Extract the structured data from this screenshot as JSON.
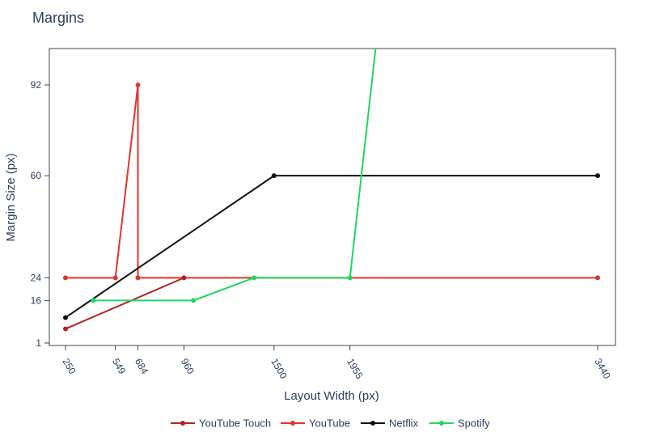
{
  "chart_data": {
    "type": "line",
    "title": "Margins",
    "xlabel": "Layout Width (px)",
    "ylabel": "Margin Size (px)",
    "x_ticks": [
      250,
      549,
      684,
      960,
      1500,
      1955,
      3440
    ],
    "y_ticks": [
      1,
      16,
      24,
      60,
      92
    ],
    "xlim": [
      250,
      3440
    ],
    "ylim": [
      1,
      92
    ],
    "legend_position": "bottom",
    "series": [
      {
        "name": "YouTube Touch",
        "color": "#b22222",
        "x": [
          250,
          960
        ],
        "y": [
          6,
          24
        ]
      },
      {
        "name": "YouTube",
        "color": "#e0352b",
        "x": [
          250,
          549,
          684,
          684,
          3440
        ],
        "y": [
          24,
          24,
          92,
          24,
          24
        ]
      },
      {
        "name": "Netflix",
        "color": "#111111",
        "x": [
          250,
          1500,
          3440
        ],
        "y": [
          10,
          60,
          60
        ]
      },
      {
        "name": "Spotify",
        "color": "#1ed760",
        "x": [
          416,
          1017,
          1380,
          1955,
          2115
        ],
        "y": [
          16,
          16,
          24,
          24,
          108
        ]
      }
    ]
  }
}
